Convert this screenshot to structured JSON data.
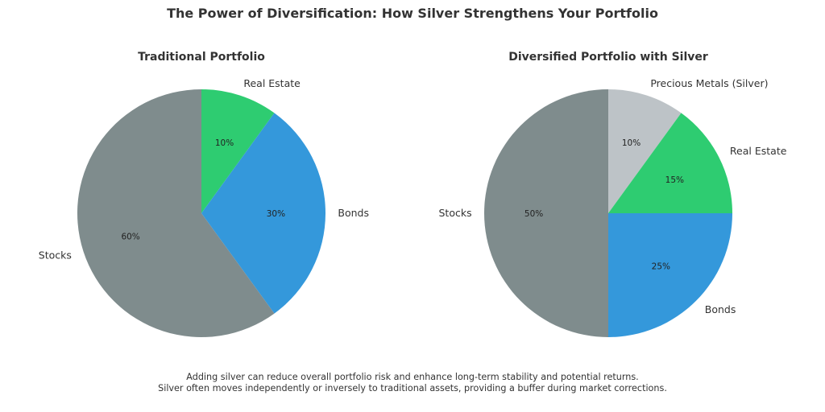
{
  "title": "The Power of Diversification: How Silver Strengthens Your Portfolio",
  "footer": {
    "line1": "Adding silver can reduce overall portfolio risk and enhance long-term stability and potential returns.",
    "line2": "Silver often moves independently or inversely to traditional assets, providing a buffer during market corrections."
  },
  "chart_data": [
    {
      "type": "pie",
      "title": "Traditional Portfolio",
      "slices": [
        {
          "label": "Real Estate",
          "value": 10,
          "pct_label": "10%",
          "color": "#2ecc71"
        },
        {
          "label": "Bonds",
          "value": 30,
          "pct_label": "30%",
          "color": "#3498db"
        },
        {
          "label": "Stocks",
          "value": 60,
          "pct_label": "60%",
          "color": "#7f8c8d"
        }
      ]
    },
    {
      "type": "pie",
      "title": "Diversified Portfolio with Silver",
      "slices": [
        {
          "label": "Precious Metals (Silver)",
          "value": 10,
          "pct_label": "10%",
          "color": "#bdc3c7"
        },
        {
          "label": "Real Estate",
          "value": 15,
          "pct_label": "15%",
          "color": "#2ecc71"
        },
        {
          "label": "Bonds",
          "value": 25,
          "pct_label": "25%",
          "color": "#3498db"
        },
        {
          "label": "Stocks",
          "value": 50,
          "pct_label": "50%",
          "color": "#7f8c8d"
        }
      ]
    }
  ]
}
